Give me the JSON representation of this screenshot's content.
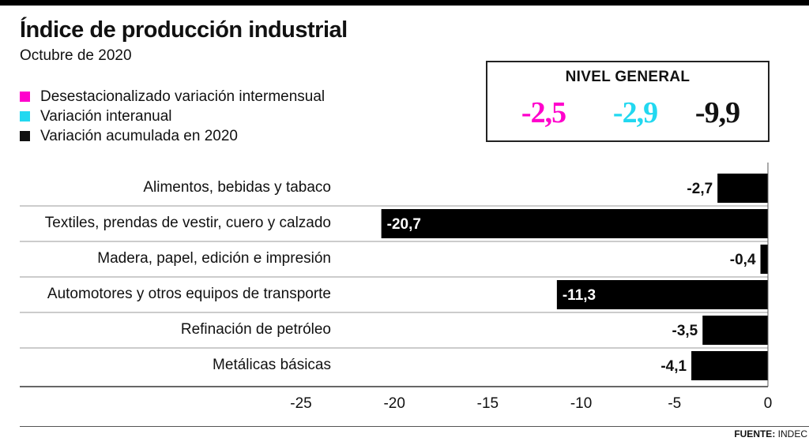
{
  "header": {
    "title": "Índice de producción industrial",
    "subtitle": "Octubre de 2020"
  },
  "legend": [
    {
      "label": "Desestacionalizado variación intermensual",
      "color": "#ff00cc"
    },
    {
      "label": "Variación interanual",
      "color": "#22d8f0"
    },
    {
      "label": "Variación acumulada en 2020",
      "color": "#111111"
    }
  ],
  "nivel_general": {
    "title": "NIVEL GENERAL",
    "values": [
      {
        "text": "-2,5",
        "color": "#ff00cc"
      },
      {
        "text": "-2,9",
        "color": "#22d8f0"
      },
      {
        "text": "-9,9",
        "color": "#111111"
      }
    ]
  },
  "chart_data": {
    "type": "bar",
    "orientation": "horizontal",
    "categories": [
      "Alimentos, bebidas y tabaco",
      "Textiles, prendas de vestir, cuero y calzado",
      "Madera, papel, edición e impresión",
      "Automotores y otros equipos de transporte",
      "Refinación de petróleo",
      "Metálicas básicas"
    ],
    "values": [
      -2.7,
      -20.7,
      -0.4,
      -11.3,
      -3.5,
      -4.1
    ],
    "value_labels": [
      "-2,7",
      "-20,7",
      "-0,4",
      "-11,3",
      "-3,5",
      "-4,1"
    ],
    "xlim": [
      -25,
      0
    ],
    "xticks": [
      "-25",
      "-20",
      "-15",
      "-10",
      "-5",
      "0"
    ],
    "bar_color": "#000000",
    "grid": false
  },
  "footer": {
    "source_label": "FUENTE:",
    "source_value": "INDEC"
  }
}
